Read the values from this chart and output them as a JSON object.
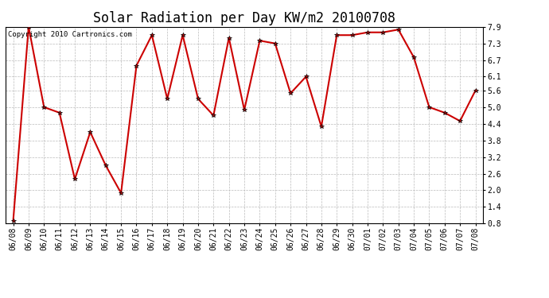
{
  "title": "Solar Radiation per Day KW/m2 20100708",
  "copyright": "Copyright 2010 Cartronics.com",
  "labels": [
    "06/08",
    "06/09",
    "06/10",
    "06/11",
    "06/12",
    "06/13",
    "06/14",
    "06/15",
    "06/16",
    "06/17",
    "06/18",
    "06/19",
    "06/20",
    "06/21",
    "06/22",
    "06/23",
    "06/24",
    "06/25",
    "06/26",
    "06/27",
    "06/28",
    "06/29",
    "06/30",
    "07/01",
    "07/02",
    "07/03",
    "07/04",
    "07/05",
    "07/06",
    "07/07",
    "07/08"
  ],
  "values": [
    0.9,
    7.9,
    5.0,
    4.8,
    2.4,
    4.1,
    2.9,
    1.9,
    6.5,
    7.6,
    5.3,
    7.6,
    5.3,
    4.7,
    7.5,
    4.9,
    7.4,
    7.3,
    5.5,
    6.1,
    4.3,
    7.6,
    7.6,
    7.7,
    7.7,
    7.8,
    6.8,
    5.0,
    4.8,
    4.5,
    5.6
  ],
  "line_color": "#cc0000",
  "marker": "*",
  "marker_color": "#000000",
  "marker_size": 4,
  "line_width": 1.5,
  "ylim": [
    0.8,
    7.9
  ],
  "ytick_values": [
    0.8,
    1.4,
    2.0,
    2.6,
    3.2,
    3.8,
    4.4,
    5.0,
    5.6,
    6.1,
    6.7,
    7.3,
    7.9
  ],
  "ytick_labels": [
    "0.8",
    "1.4",
    "2.0",
    "2.6",
    "3.2",
    "3.8",
    "4.4",
    "5.0",
    "5.6",
    "6.1",
    "6.7",
    "7.3",
    "7.9"
  ],
  "background_color": "#ffffff",
  "grid_color": "#bbbbbb",
  "title_fontsize": 12,
  "tick_fontsize": 7,
  "copyright_fontsize": 6.5
}
